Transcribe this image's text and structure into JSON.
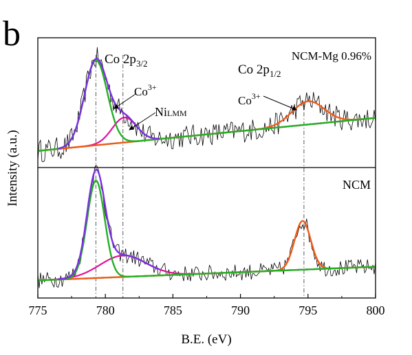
{
  "panel_label": "b",
  "chart_data": {
    "type": "line",
    "xlabel": "B.E. (eV)",
    "ylabel": "Intensity (a.u.)",
    "xlim": [
      775,
      800
    ],
    "x_ticks": [
      775,
      780,
      785,
      790,
      795,
      800
    ],
    "grid": false,
    "reference_lines_eV": [
      779.3,
      781.3,
      794.7
    ],
    "colors": {
      "raw": "#000000",
      "envelope": "#7B2FE0",
      "co_2p32": "#22B022",
      "ni_lmm": "#E0109A",
      "co_2p12": "#F05A19",
      "background": "#22B022",
      "refline": "#555555"
    },
    "panels": [
      {
        "name": "NCM-Mg 0.96%",
        "label": "NCM-Mg 0.96%",
        "background_line": {
          "start": [
            775,
            0.04
          ],
          "end": [
            800,
            0.41
          ]
        },
        "peaks": [
          {
            "name": "Co 2p3/2 (Co3+)",
            "center": 779.3,
            "height": 0.95,
            "sigma": 0.85
          },
          {
            "name": "Ni LMM",
            "center": 781.4,
            "height": 0.28,
            "sigma": 0.9
          },
          {
            "name": "Co 2p1/2 (Co3+)",
            "center": 795.0,
            "height": 0.26,
            "sigma": 1.2
          }
        ],
        "annotations": {
          "co_2p32_main": "Co 2p",
          "co_2p32_sub": "3/2",
          "co3_a_main": "Co",
          "co3_a_sup": "3+",
          "ni_main": "Ni",
          "ni_sub": "LMM",
          "co_2p12_main": "Co 2p",
          "co_2p12_sub": "1/2",
          "co3_b_main": "Co",
          "co3_b_sup": "3+"
        }
      },
      {
        "name": "NCM",
        "label": "NCM",
        "background_line": {
          "start": [
            775,
            0.04
          ],
          "end": [
            800,
            0.18
          ]
        },
        "peaks": [
          {
            "name": "Co 2p3/2 (Co3+)",
            "center": 779.3,
            "height": 1.0,
            "sigma": 0.65
          },
          {
            "name": "Ni LMM",
            "center": 781.3,
            "height": 0.22,
            "sigma": 1.7
          },
          {
            "name": "Co 2p1/2 (Co3+)",
            "center": 794.6,
            "height": 0.5,
            "sigma": 0.6
          }
        ]
      }
    ]
  }
}
